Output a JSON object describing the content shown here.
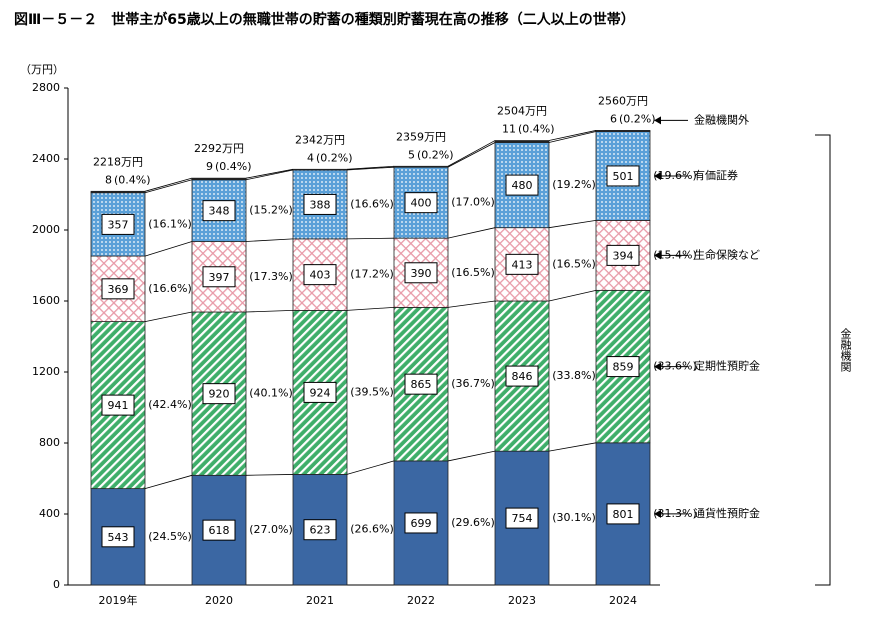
{
  "chart_data": {
    "type": "stacked_bar",
    "title": "図Ⅲ－５－２　世帯主が65歳以上の無職世帯の貯蓄の種類別貯蓄現在高の推移（二人以上の世帯）",
    "y_label": "（万円）",
    "bracket_label": "金融機関",
    "categories": [
      "2019年",
      "2020",
      "2021",
      "2022",
      "2023",
      "2024"
    ],
    "ylim": [
      0,
      2800
    ],
    "yticks": [
      0,
      400,
      800,
      1200,
      1600,
      2000,
      2400,
      2800
    ],
    "series": [
      {
        "name": "通貨性預貯金",
        "color": "#3b67a3",
        "pattern": "solid",
        "values": [
          543,
          618,
          623,
          699,
          754,
          801
        ],
        "shares": {
          "values": [
            24.5,
            27.0,
            26.6,
            29.6,
            30.1,
            31.3
          ],
          "value_labels": [
            "(24.5%)",
            "(27.0%)",
            "(26.6%)",
            "(29.6%)",
            "(30.1%)",
            "(31.3%)"
          ]
        }
      },
      {
        "name": "定期性預貯金",
        "color": "#3fae6a",
        "pattern": "diagonal",
        "values": [
          941,
          920,
          924,
          865,
          846,
          859
        ],
        "shares": {
          "values": [
            42.4,
            40.1,
            39.5,
            36.7,
            33.8,
            33.6
          ],
          "value_labels": [
            "(42.4%)",
            "(40.1%)",
            "(39.5%)",
            "(36.7%)",
            "(33.8%)",
            "(33.6%)"
          ]
        }
      },
      {
        "name": "生命保険など",
        "color": "#e89aa8",
        "pattern": "crosshatch",
        "values": [
          369,
          397,
          403,
          390,
          413,
          394
        ],
        "shares": {
          "values": [
            16.6,
            17.3,
            17.2,
            16.5,
            16.5,
            15.4
          ],
          "value_labels": [
            "(16.6%)",
            "(17.3%)",
            "(17.2%)",
            "(16.5%)",
            "(16.5%)",
            "(15.4%)"
          ]
        }
      },
      {
        "name": "有価証券",
        "color": "#5aa0d8",
        "pattern": "dots",
        "values": [
          357,
          348,
          388,
          400,
          480,
          501
        ],
        "shares": {
          "values": [
            16.1,
            15.2,
            16.6,
            17.0,
            19.2,
            19.6
          ],
          "value_labels": [
            "(16.1%)",
            "(15.2%)",
            "(16.6%)",
            "(17.0%)",
            "(19.2%)",
            "(19.6%)"
          ]
        }
      },
      {
        "name": "金融機関外",
        "color": "#222222",
        "pattern": "solid",
        "values": [
          8,
          9,
          4,
          5,
          11,
          6
        ],
        "shares": {
          "values": [
            0.4,
            0.4,
            0.2,
            0.2,
            0.4,
            0.2
          ],
          "value_labels": [
            "(0.4%)",
            "(0.4%)",
            "(0.2%)",
            "(0.2%)",
            "(0.4%)",
            "(0.2%)"
          ]
        }
      }
    ],
    "totals": {
      "values": [
        2218,
        2292,
        2342,
        2359,
        2504,
        2560
      ],
      "value_labels": [
        "2218万円",
        "2292万円",
        "2342万円",
        "2359万円",
        "2504万円",
        "2560万円"
      ]
    }
  }
}
